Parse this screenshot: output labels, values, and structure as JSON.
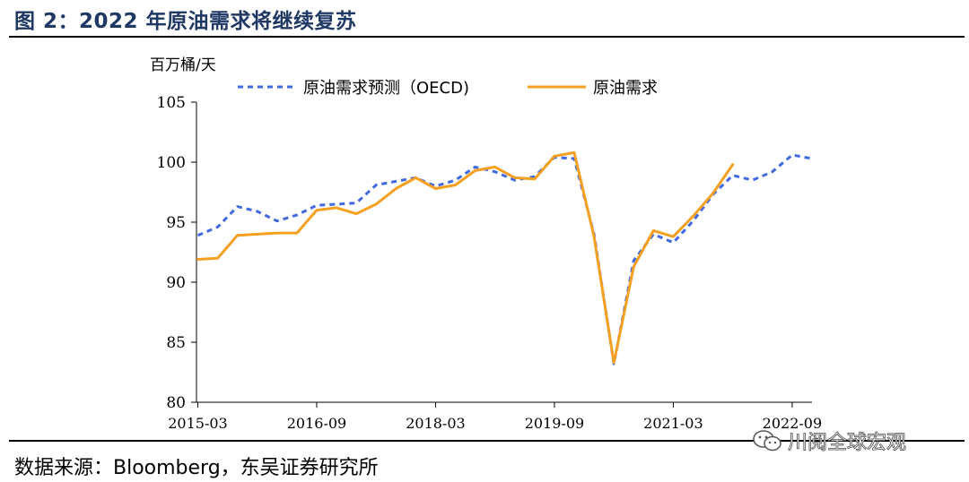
{
  "figure": {
    "title": "图 2：2022 年原油需求将继续复苏",
    "source": "数据来源：Bloomberg，东吴证券研究所",
    "watermark": "川阅全球宏观",
    "watermark_icon": "wechat-icon"
  },
  "chart_data": {
    "type": "line",
    "unit_label": "百万桶/天",
    "title": "",
    "xlabel": "",
    "ylabel": "百万桶/天",
    "ylim": [
      80,
      105
    ],
    "yticks": [
      80,
      85,
      90,
      95,
      100,
      105
    ],
    "xlim": [
      "2015-03",
      "2022-12"
    ],
    "xticks": [
      "2015-03",
      "2016-09",
      "2018-03",
      "2019-09",
      "2021-03",
      "2022-09"
    ],
    "grid": false,
    "legend_position": "top",
    "series": [
      {
        "name": "原油需求预测（OECD)",
        "style": "dashed",
        "color": "#4169e1",
        "x": [
          "2015-03",
          "2015-06",
          "2015-09",
          "2015-12",
          "2016-03",
          "2016-06",
          "2016-09",
          "2016-12",
          "2017-03",
          "2017-06",
          "2017-09",
          "2017-12",
          "2018-03",
          "2018-06",
          "2018-09",
          "2018-12",
          "2019-03",
          "2019-06",
          "2019-09",
          "2019-12",
          "2020-03",
          "2020-06",
          "2020-09",
          "2020-12",
          "2021-03",
          "2021-06",
          "2021-09",
          "2021-12",
          "2022-03",
          "2022-06",
          "2022-09",
          "2022-12"
        ],
        "values": [
          93.9,
          94.6,
          96.3,
          95.9,
          95.1,
          95.6,
          96.4,
          96.5,
          96.6,
          98.1,
          98.4,
          98.7,
          98.0,
          98.5,
          99.6,
          99.2,
          98.5,
          98.8,
          100.4,
          100.3,
          94.0,
          83.2,
          91.8,
          94.0,
          93.3,
          95.1,
          97.3,
          98.9,
          98.5,
          99.2,
          100.6,
          100.3
        ]
      },
      {
        "name": "原油需求",
        "style": "solid",
        "color": "#f5a020",
        "x": [
          "2015-03",
          "2015-06",
          "2015-09",
          "2015-12",
          "2016-03",
          "2016-06",
          "2016-09",
          "2016-12",
          "2017-03",
          "2017-06",
          "2017-09",
          "2017-12",
          "2018-03",
          "2018-06",
          "2018-09",
          "2018-12",
          "2019-03",
          "2019-06",
          "2019-09",
          "2019-12",
          "2020-03",
          "2020-06",
          "2020-09",
          "2020-12",
          "2021-03",
          "2021-06",
          "2021-09",
          "2021-12"
        ],
        "values": [
          91.9,
          92.0,
          93.9,
          94.0,
          94.1,
          94.1,
          96.0,
          96.2,
          95.7,
          96.5,
          97.8,
          98.7,
          97.8,
          98.1,
          99.3,
          99.6,
          98.7,
          98.6,
          100.5,
          100.8,
          93.8,
          83.3,
          91.3,
          94.3,
          93.8,
          95.5,
          97.4,
          99.8
        ]
      }
    ]
  }
}
